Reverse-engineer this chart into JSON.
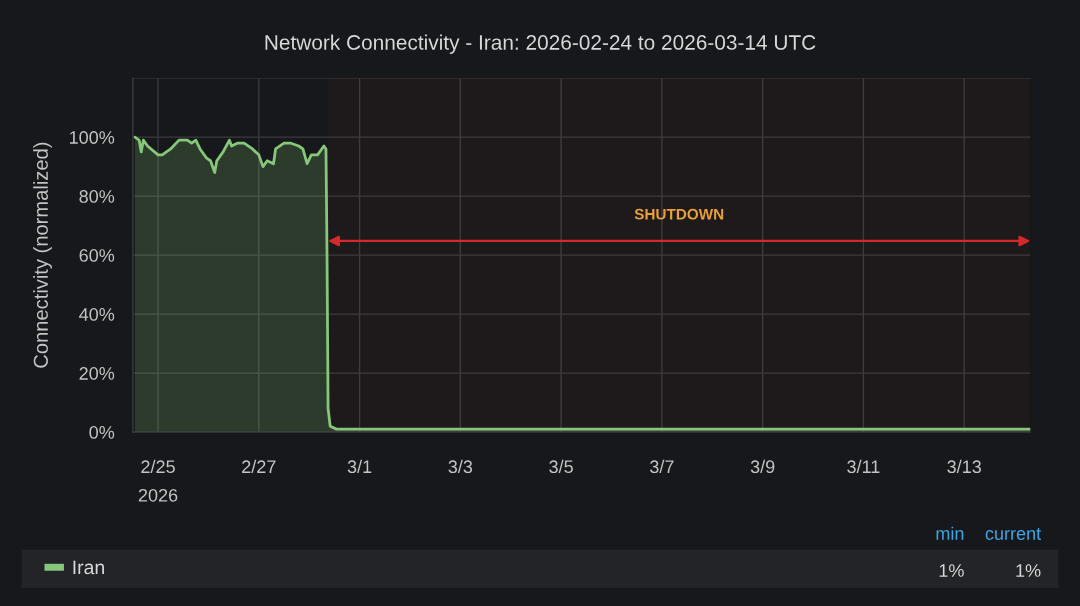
{
  "chart_data": {
    "type": "area",
    "title": "Network Connectivity - Iran: 2026-02-24 to 2026-03-14 UTC",
    "ylabel": "Connectivity (normalized)",
    "x": [
      "2026-02-24T13:00",
      "2026-02-24T15:00",
      "2026-02-24T16:00",
      "2026-02-24T17:00",
      "2026-02-24T19:00",
      "2026-02-25T00:00",
      "2026-02-25T02:00",
      "2026-02-25T06:00",
      "2026-02-25T10:00",
      "2026-02-25T14:00",
      "2026-02-25T16:00",
      "2026-02-25T18:00",
      "2026-02-25T20:00",
      "2026-02-25T23:00",
      "2026-02-26T01:00",
      "2026-02-26T03:00",
      "2026-02-26T04:00",
      "2026-02-26T07:00",
      "2026-02-26T10:00",
      "2026-02-26T11:00",
      "2026-02-26T14:00",
      "2026-02-26T17:00",
      "2026-02-26T21:00",
      "2026-02-27T00:00",
      "2026-02-27T02:00",
      "2026-02-27T04:00",
      "2026-02-27T07:00",
      "2026-02-27T08:00",
      "2026-02-27T12:00",
      "2026-02-27T15:00",
      "2026-02-27T19:00",
      "2026-02-27T21:00",
      "2026-02-27T23:00",
      "2026-02-28T01:00",
      "2026-02-28T04:00",
      "2026-02-28T07:00",
      "2026-02-28T08:00",
      "2026-02-28T08:30",
      "2026-02-28T09:00",
      "2026-02-28T10:00",
      "2026-02-28T13:00",
      "2026-03-01T00:00",
      "2026-03-03T00:00",
      "2026-03-05T00:00",
      "2026-03-07T00:00",
      "2026-03-09T00:00",
      "2026-03-11T00:00",
      "2026-03-13T00:00",
      "2026-03-14T07:30"
    ],
    "series": [
      {
        "name": "Iran",
        "color": "#86c77a",
        "values": [
          100,
          99,
          95,
          99,
          97,
          94,
          94,
          96,
          99,
          99,
          98,
          99,
          96,
          93,
          92,
          88,
          92,
          95,
          99,
          97,
          98,
          98,
          96,
          94,
          90,
          92,
          91,
          96,
          98,
          98,
          97,
          96,
          91,
          94,
          94,
          97,
          96,
          60,
          8,
          2,
          1,
          1,
          1,
          1,
          1,
          1,
          1,
          1,
          1
        ]
      }
    ],
    "xlim": [
      "2026-02-24T12:00",
      "2026-03-14T07:30"
    ],
    "xticks": [
      {
        "value": "2026-02-25",
        "label": "2/25\n2026"
      },
      {
        "value": "2026-02-27",
        "label": "2/27"
      },
      {
        "value": "2026-03-01",
        "label": "3/1"
      },
      {
        "value": "2026-03-03",
        "label": "3/3"
      },
      {
        "value": "2026-03-05",
        "label": "3/5"
      },
      {
        "value": "2026-03-07",
        "label": "3/7"
      },
      {
        "value": "2026-03-09",
        "label": "3/9"
      },
      {
        "value": "2026-03-11",
        "label": "3/11"
      },
      {
        "value": "2026-03-13",
        "label": "3/13"
      }
    ],
    "ylim": [
      0,
      120
    ],
    "yticks": [
      {
        "value": 0,
        "label": "0%"
      },
      {
        "value": 20,
        "label": "20%"
      },
      {
        "value": 40,
        "label": "40%"
      },
      {
        "value": 60,
        "label": "60%"
      },
      {
        "value": 80,
        "label": "80%"
      },
      {
        "value": 100,
        "label": "100%"
      },
      {
        "value": 120,
        "label": null
      }
    ],
    "bands": [
      {
        "axis": "x",
        "from": "2026-02-28T09:00",
        "to": "2026-03-14T07:30",
        "label": "SHUTDOWN",
        "color": "#d42a2a"
      }
    ],
    "annotations": [
      "min",
      "current",
      "1%",
      "1%"
    ],
    "grid": true,
    "legend": "bottom"
  }
}
